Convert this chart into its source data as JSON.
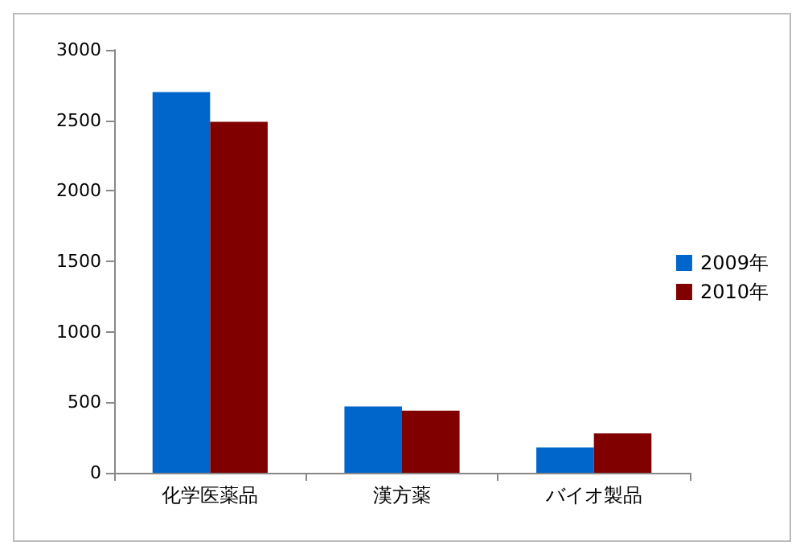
{
  "chart_data": {
    "type": "bar",
    "categories": [
      "化学医薬品",
      "漢方薬",
      "バイオ製品"
    ],
    "series": [
      {
        "name": "2009年",
        "color": "#0066cc",
        "values": [
          2700,
          470,
          180
        ]
      },
      {
        "name": "2010年",
        "color": "#800000",
        "values": [
          2490,
          440,
          280
        ]
      }
    ],
    "ylim": [
      0,
      3000
    ],
    "yticks": [
      0,
      500,
      1000,
      1500,
      2000,
      2500,
      3000
    ],
    "grid": false,
    "legend": "right"
  }
}
